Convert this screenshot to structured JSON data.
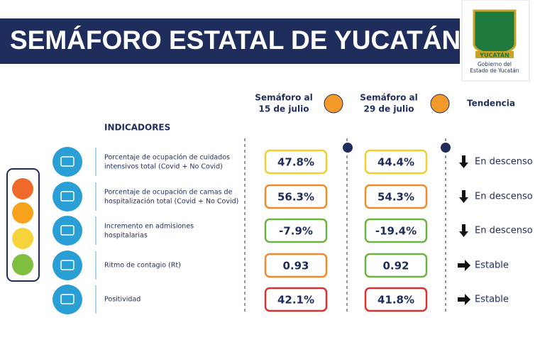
{
  "header": {
    "title": "SEMÁFORO ESTATAL DE YUCATÁN"
  },
  "logo": {
    "name": "YUCATÁN",
    "caption_line1": "Gobierno del",
    "caption_line2": "Estado de Yucatán"
  },
  "columns": {
    "indicators": "INDICADORES",
    "first_line1": "Semáforo al",
    "first_line2": "15 de julio",
    "second_line1": "Semáforo al",
    "second_line2": "29 de julio",
    "trend": "Tendencia"
  },
  "table": {
    "rows": [
      {
        "label_line1": "Porcentaje de ocupación de cuidados",
        "label_line2": "intensivos total (Covid + No Covid)",
        "first": "47.8%",
        "second": "44.4%",
        "trend": "En descenso"
      },
      {
        "label_line1": "Porcentaje de ocupación de camas de",
        "label_line2": "hospitalización total (Covid + No Covid)",
        "first": "56.3%",
        "second": "54.3%",
        "trend": "En descenso"
      },
      {
        "label_line1": "Incremento en admisiones",
        "label_line2": "hospitalarias",
        "first": "-7.9%",
        "second": "-19.4%",
        "trend": "En descenso"
      },
      {
        "label_line1": "Ritmo de contagio (Rt)",
        "first": "0.93",
        "second": "0.92",
        "trend": "Estable"
      },
      {
        "label_line1": "Positividad",
        "first": "42.1%",
        "second": "41.8%",
        "trend": "Estable"
      }
    ]
  }
}
